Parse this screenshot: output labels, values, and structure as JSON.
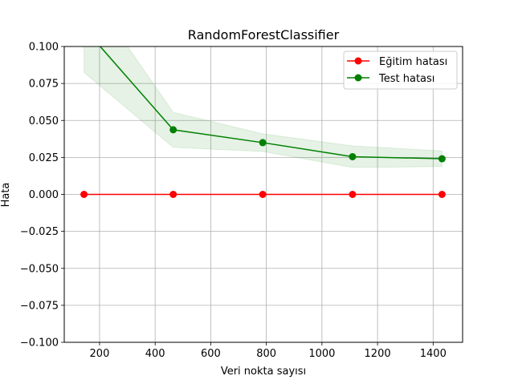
{
  "chart_data": {
    "type": "line",
    "title": "RandomForestClassifier",
    "xlabel": "Veri nokta sayısı",
    "ylabel": "Hata",
    "xlim": [
      73,
      1506
    ],
    "ylim": [
      -0.1,
      0.1
    ],
    "x_ticks": [
      200,
      400,
      600,
      800,
      1000,
      1200,
      1400
    ],
    "x_tick_labels": [
      "200",
      "400",
      "600",
      "800",
      "1000",
      "1200",
      "1400"
    ],
    "y_ticks": [
      0.1,
      0.075,
      0.05,
      0.025,
      0.0,
      -0.025,
      -0.05,
      -0.075,
      -0.1
    ],
    "y_tick_labels": [
      "0.100",
      "0.075",
      "0.050",
      "0.025",
      "0.000",
      "−0.025",
      "−0.050",
      "−0.075",
      "−0.100"
    ],
    "grid": true,
    "legend_position": "top-right",
    "series": [
      {
        "name": "Eğitim hatası",
        "color": "#ff0000",
        "x": [
          144,
          465,
          787,
          1110,
          1432
        ],
        "y": [
          0.0,
          0.0,
          0.0,
          0.0,
          0.0
        ],
        "band_lower": [
          0.0,
          0.0,
          0.0,
          0.0,
          0.0
        ],
        "band_upper": [
          0.0,
          0.0,
          0.0,
          0.0,
          0.0
        ]
      },
      {
        "name": "Test hatası",
        "color": "#008000",
        "band_color": "#008000",
        "x": [
          144,
          465,
          787,
          1110,
          1432
        ],
        "y": [
          0.1125,
          0.0437,
          0.035,
          0.0255,
          0.0241
        ],
        "band_lower": [
          0.0825,
          0.0318,
          0.029,
          0.0182,
          0.0188
        ],
        "band_upper": [
          0.1425,
          0.0555,
          0.041,
          0.0328,
          0.0294
        ]
      }
    ]
  }
}
